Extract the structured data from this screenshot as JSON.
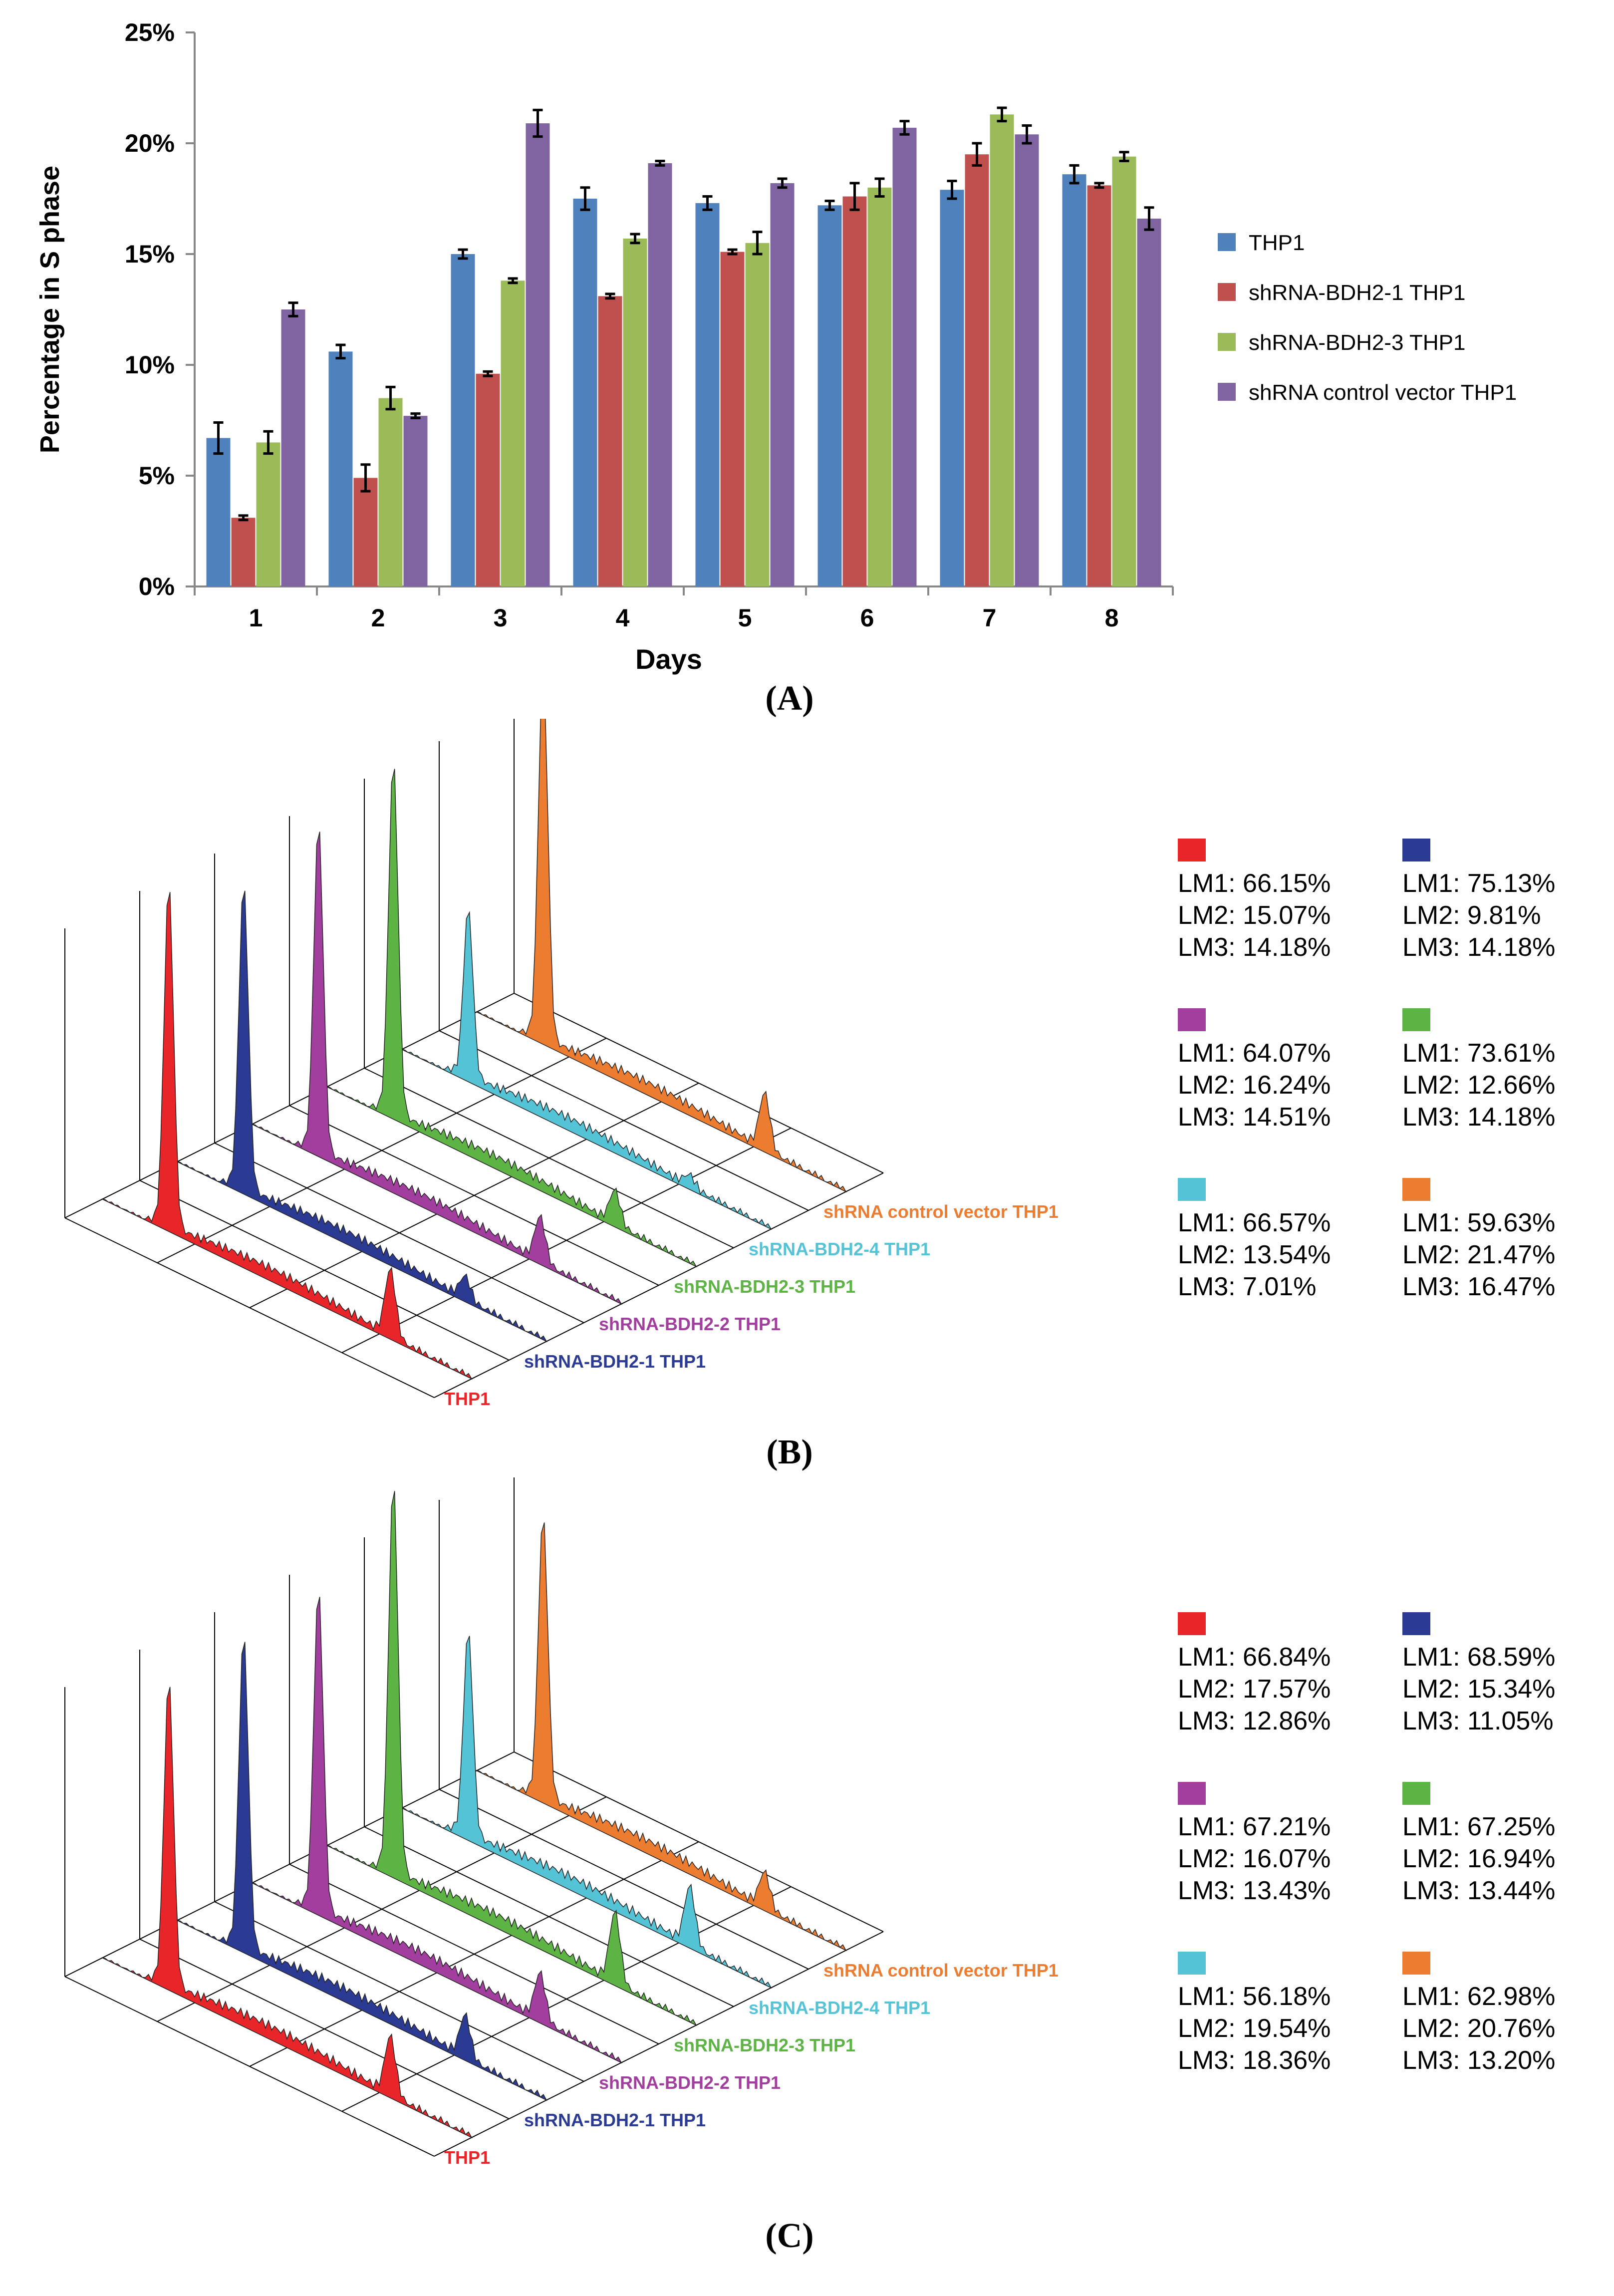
{
  "chart_data": [
    {
      "type": "bar",
      "panel": "A",
      "xlabel": "Days",
      "ylabel": "Percentage in S phase",
      "ylim": [
        0,
        25
      ],
      "yticks": [
        "0%",
        "5%",
        "10%",
        "15%",
        "20%",
        "25%"
      ],
      "categories": [
        "1",
        "2",
        "3",
        "4",
        "5",
        "6",
        "7",
        "8"
      ],
      "legend_position": "right",
      "series": [
        {
          "name": "THP1",
          "color": "#4f81bd",
          "values": [
            6.7,
            10.6,
            15.0,
            17.5,
            17.3,
            17.2,
            17.9,
            18.6
          ],
          "errors": [
            0.7,
            0.3,
            0.2,
            0.5,
            0.3,
            0.2,
            0.4,
            0.4
          ]
        },
        {
          "name": "shRNA-BDH2-1 THP1",
          "color": "#c0504d",
          "values": [
            3.1,
            4.9,
            9.6,
            13.1,
            15.1,
            17.6,
            19.5,
            18.1
          ],
          "errors": [
            0.1,
            0.6,
            0.1,
            0.1,
            0.1,
            0.6,
            0.5,
            0.1
          ]
        },
        {
          "name": "shRNA-BDH2-3 THP1",
          "color": "#9bbb59",
          "values": [
            6.5,
            8.5,
            13.8,
            15.7,
            15.5,
            18.0,
            21.3,
            19.4
          ],
          "errors": [
            0.5,
            0.5,
            0.1,
            0.2,
            0.5,
            0.4,
            0.3,
            0.2
          ]
        },
        {
          "name": "shRNA control vector THP1",
          "color": "#8064a2",
          "values": [
            12.5,
            7.7,
            20.9,
            19.1,
            18.2,
            20.7,
            20.4,
            16.6
          ],
          "errors": [
            0.3,
            0.1,
            0.6,
            0.1,
            0.2,
            0.3,
            0.4,
            0.5
          ]
        }
      ]
    },
    {
      "type": "area",
      "panel": "B",
      "traces": [
        {
          "name": "THP1",
          "color": "#e8262a",
          "peak": 0.92,
          "g2": 0.3
        },
        {
          "name": "shRNA-BDH2-1 THP1",
          "color": "#2b3a93",
          "peak": 0.82,
          "g2": 0.1
        },
        {
          "name": "shRNA-BDH2-2 THP1",
          "color": "#a23e9e",
          "peak": 0.88,
          "g2": 0.2
        },
        {
          "name": "shRNA-BDH2-3 THP1",
          "color": "#5db444",
          "peak": 0.95,
          "g2": 0.15
        },
        {
          "name": "shRNA-BDH2-4 THP1",
          "color": "#55c3d6",
          "peak": 0.45,
          "g2": 0.05
        },
        {
          "name": "shRNA control vector THP1",
          "color": "#ec7c30",
          "peak": 1.0,
          "g2": 0.25
        }
      ],
      "stats": [
        {
          "color": "#e8262a",
          "lines": [
            "LM1: 66.15%",
            "LM2: 15.07%",
            "LM3: 14.18%"
          ]
        },
        {
          "color": "#2b3a93",
          "lines": [
            "LM1: 75.13%",
            "LM2: 9.81%",
            "LM3: 14.18%"
          ]
        },
        {
          "color": "#a23e9e",
          "lines": [
            "LM1: 64.07%",
            "LM2: 16.24%",
            "LM3: 14.51%"
          ]
        },
        {
          "color": "#5db444",
          "lines": [
            "LM1: 73.61%",
            "LM2: 12.66%",
            "LM3: 14.18%"
          ]
        },
        {
          "color": "#55c3d6",
          "lines": [
            "LM1: 66.57%",
            "LM2: 13.54%",
            "LM3: 7.01%"
          ]
        },
        {
          "color": "#ec7c30",
          "lines": [
            "LM1: 59.63%",
            "LM2: 21.47%",
            "LM3: 16.47%"
          ]
        }
      ]
    },
    {
      "type": "area",
      "panel": "C",
      "traces": [
        {
          "name": "THP1",
          "color": "#e8262a",
          "peak": 0.78,
          "g2": 0.25
        },
        {
          "name": "shRNA-BDH2-1 THP1",
          "color": "#2b3a93",
          "peak": 0.8,
          "g2": 0.18
        },
        {
          "name": "shRNA-BDH2-2 THP1",
          "color": "#a23e9e",
          "peak": 0.82,
          "g2": 0.2
        },
        {
          "name": "shRNA-BDH2-3 THP1",
          "color": "#5db444",
          "peak": 1.0,
          "g2": 0.3
        },
        {
          "name": "shRNA-BDH2-4 THP1",
          "color": "#55c3d6",
          "peak": 0.52,
          "g2": 0.25
        },
        {
          "name": "shRNA control vector THP1",
          "color": "#ec7c30",
          "peak": 0.72,
          "g2": 0.15
        }
      ],
      "stats": [
        {
          "color": "#e8262a",
          "lines": [
            "LM1: 66.84%",
            "LM2: 17.57%",
            "LM3: 12.86%"
          ]
        },
        {
          "color": "#2b3a93",
          "lines": [
            "LM1: 68.59%",
            "LM2: 15.34%",
            "LM3: 11.05%"
          ]
        },
        {
          "color": "#a23e9e",
          "lines": [
            "LM1: 67.21%",
            "LM2: 16.07%",
            "LM3: 13.43%"
          ]
        },
        {
          "color": "#5db444",
          "lines": [
            "LM1: 67.25%",
            "LM2: 16.94%",
            "LM3: 13.44%"
          ]
        },
        {
          "color": "#55c3d6",
          "lines": [
            "LM1: 56.18%",
            "LM2: 19.54%",
            "LM3: 18.36%"
          ]
        },
        {
          "color": "#ec7c30",
          "lines": [
            "LM1: 62.98%",
            "LM2: 20.76%",
            "LM3: 13.20%"
          ]
        }
      ]
    }
  ],
  "captions": {
    "a": "(A)",
    "b": "(B)",
    "c": "(C)"
  }
}
